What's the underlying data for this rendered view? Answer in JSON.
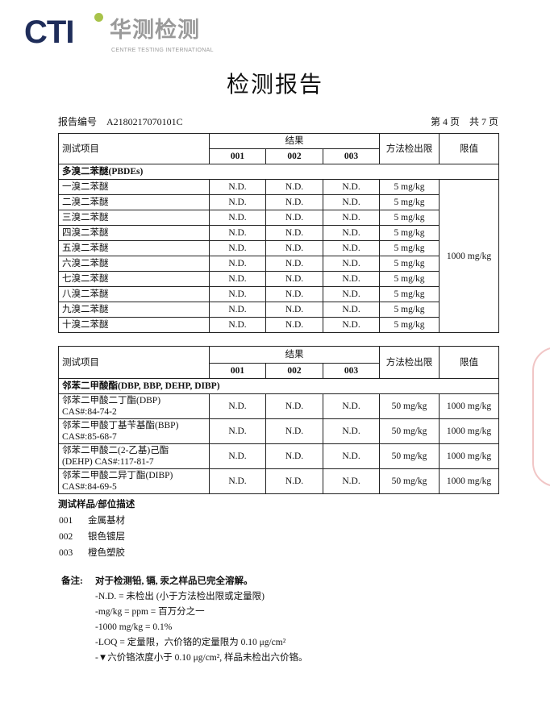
{
  "logo": {
    "mark": "CTI",
    "cn": "华测检测",
    "en": "CENTRE TESTING INTERNATIONAL"
  },
  "title": "检测报告",
  "report_no_label": "报告编号",
  "report_no": "A2180217070101C",
  "page_info": "第 4 页    共 7 页",
  "headers": {
    "item": "测试项目",
    "result": "结果",
    "s1": "001",
    "s2": "002",
    "s3": "003",
    "mdl": "方法检出限",
    "limit": "限值"
  },
  "table1": {
    "group": "多溴二苯醚(PBDEs)",
    "limit": "1000 mg/kg",
    "rows": [
      {
        "name": "一溴二苯醚",
        "r1": "N.D.",
        "r2": "N.D.",
        "r3": "N.D.",
        "mdl": "5 mg/kg"
      },
      {
        "name": "二溴二苯醚",
        "r1": "N.D.",
        "r2": "N.D.",
        "r3": "N.D.",
        "mdl": "5 mg/kg"
      },
      {
        "name": "三溴二苯醚",
        "r1": "N.D.",
        "r2": "N.D.",
        "r3": "N.D.",
        "mdl": "5 mg/kg"
      },
      {
        "name": "四溴二苯醚",
        "r1": "N.D.",
        "r2": "N.D.",
        "r3": "N.D.",
        "mdl": "5 mg/kg"
      },
      {
        "name": "五溴二苯醚",
        "r1": "N.D.",
        "r2": "N.D.",
        "r3": "N.D.",
        "mdl": "5 mg/kg"
      },
      {
        "name": "六溴二苯醚",
        "r1": "N.D.",
        "r2": "N.D.",
        "r3": "N.D.",
        "mdl": "5 mg/kg"
      },
      {
        "name": "七溴二苯醚",
        "r1": "N.D.",
        "r2": "N.D.",
        "r3": "N.D.",
        "mdl": "5 mg/kg"
      },
      {
        "name": "八溴二苯醚",
        "r1": "N.D.",
        "r2": "N.D.",
        "r3": "N.D.",
        "mdl": "5 mg/kg"
      },
      {
        "name": "九溴二苯醚",
        "r1": "N.D.",
        "r2": "N.D.",
        "r3": "N.D.",
        "mdl": "5 mg/kg"
      },
      {
        "name": "十溴二苯醚",
        "r1": "N.D.",
        "r2": "N.D.",
        "r3": "N.D.",
        "mdl": "5 mg/kg"
      }
    ]
  },
  "table2": {
    "group": "邻苯二甲酸酯(DBP, BBP, DEHP, DIBP)",
    "rows": [
      {
        "name1": "邻苯二甲酸二丁酯(DBP)",
        "name2": "CAS#:84-74-2",
        "r1": "N.D.",
        "r2": "N.D.",
        "r3": "N.D.",
        "mdl": "50 mg/kg",
        "limit": "1000 mg/kg"
      },
      {
        "name1": "邻苯二甲酸丁基苄基酯(BBP)",
        "name2": "CAS#:85-68-7",
        "r1": "N.D.",
        "r2": "N.D.",
        "r3": "N.D.",
        "mdl": "50 mg/kg",
        "limit": "1000 mg/kg"
      },
      {
        "name1": "邻苯二甲酸二(2-乙基)己酯",
        "name2": "(DEHP) CAS#:117-81-7",
        "r1": "N.D.",
        "r2": "N.D.",
        "r3": "N.D.",
        "mdl": "50 mg/kg",
        "limit": "1000 mg/kg"
      },
      {
        "name1": "邻苯二甲酸二异丁酯(DIBP)",
        "name2": "CAS#:84-69-5",
        "r1": "N.D.",
        "r2": "N.D.",
        "r3": "N.D.",
        "mdl": "50 mg/kg",
        "limit": "1000 mg/kg"
      }
    ]
  },
  "samples": {
    "title": "测试样品/部位描述",
    "items": [
      {
        "id": "001",
        "desc": "金属基材"
      },
      {
        "id": "002",
        "desc": "银色镀层"
      },
      {
        "id": "003",
        "desc": "橙色塑胶"
      }
    ]
  },
  "notes": {
    "label": "备注:",
    "lines": [
      "对于检测铅, 镉, 汞之样品已完全溶解。",
      "-N.D. =  未检出 (小于方法检出限或定量限)",
      "-mg/kg = ppm =  百万分之一",
      "-1000 mg/kg = 0.1%",
      "-LOQ =  定量限，六价铬的定量限为 0.10 μg/cm²",
      "-▼六价铬浓度小于 0.10 μg/cm², 样品未检出六价铬。"
    ]
  }
}
